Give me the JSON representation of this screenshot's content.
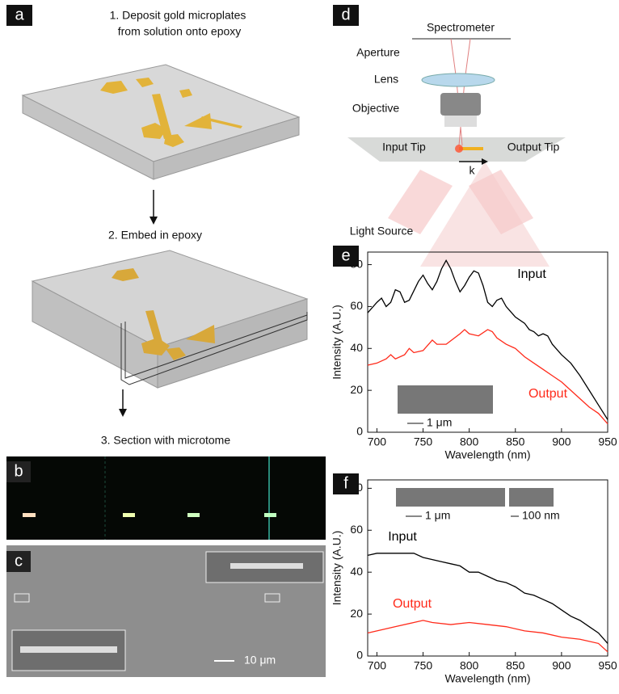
{
  "panels": {
    "a": {
      "label": "a",
      "step1": "1. Deposit gold microplates",
      "step1b": "from solution onto epoxy",
      "step2": "2. Embed in epoxy",
      "step3": "3. Section with microtome"
    },
    "b": {
      "label": "b"
    },
    "c": {
      "label": "c",
      "scale_bar": "10 μm"
    },
    "d": {
      "label": "d",
      "spectrometer": "Spectrometer",
      "aperture": "Aperture",
      "lens": "Lens",
      "objective": "Objective",
      "input_tip": "Input Tip",
      "output_tip": "Output Tip",
      "k": "k",
      "light_source": "Light Source"
    }
  },
  "chart_data": [
    {
      "type": "line",
      "panel_label": "e",
      "xlabel": "Wavelength (nm)",
      "ylabel": "Intensity (A.U.)",
      "inset_scale": "1 μm",
      "xlim": [
        690,
        950
      ],
      "ylim": [
        0,
        86
      ],
      "xticks": [
        700,
        750,
        800,
        850,
        900,
        950
      ],
      "yticks": [
        0,
        20,
        40,
        60,
        80
      ],
      "series": [
        {
          "name": "Input",
          "color": "#000000",
          "x": [
            690,
            700,
            705,
            710,
            715,
            720,
            725,
            730,
            735,
            745,
            750,
            755,
            760,
            765,
            770,
            775,
            780,
            785,
            790,
            795,
            800,
            805,
            810,
            815,
            820,
            825,
            830,
            835,
            840,
            850,
            860,
            865,
            870,
            875,
            880,
            885,
            890,
            900,
            910,
            920,
            930,
            940,
            950
          ],
          "values": [
            57,
            62,
            64,
            60,
            62,
            68,
            67,
            62,
            63,
            72,
            75,
            71,
            68,
            72,
            78,
            82,
            78,
            72,
            67,
            70,
            74,
            77,
            76,
            70,
            62,
            60,
            63,
            64,
            60,
            55,
            52,
            49,
            48,
            46,
            47,
            46,
            42,
            37,
            33,
            27,
            20,
            13,
            6
          ]
        },
        {
          "name": "Output",
          "color": "#ff2a1a",
          "x": [
            690,
            700,
            710,
            715,
            720,
            730,
            735,
            740,
            750,
            760,
            765,
            775,
            790,
            795,
            800,
            810,
            820,
            825,
            830,
            840,
            850,
            860,
            870,
            880,
            890,
            900,
            910,
            920,
            930,
            940,
            950
          ],
          "values": [
            32,
            33,
            35,
            37,
            35,
            37,
            40,
            38,
            39,
            44,
            42,
            42,
            47,
            49,
            47,
            46,
            49,
            48,
            45,
            42,
            40,
            36,
            33,
            30,
            27,
            24,
            20,
            16,
            12,
            9,
            4
          ]
        }
      ]
    },
    {
      "type": "line",
      "panel_label": "f",
      "xlabel": "Wavelength (nm)",
      "ylabel": "Intensity (A.U.)",
      "inset_scale": "1 μm",
      "inset_scale2": "100 nm",
      "xlim": [
        690,
        950
      ],
      "ylim": [
        0,
        84
      ],
      "xticks": [
        700,
        750,
        800,
        850,
        900,
        950
      ],
      "yticks": [
        0,
        20,
        40,
        60,
        80
      ],
      "series": [
        {
          "name": "Input",
          "color": "#000000",
          "x": [
            690,
            700,
            720,
            740,
            750,
            760,
            770,
            780,
            790,
            800,
            810,
            820,
            830,
            840,
            850,
            860,
            870,
            880,
            890,
            900,
            910,
            920,
            930,
            940,
            950
          ],
          "values": [
            48,
            49,
            49,
            49,
            47,
            46,
            45,
            44,
            43,
            40,
            40,
            38,
            36,
            35,
            33,
            30,
            29,
            27,
            25,
            22,
            19,
            17,
            14,
            11,
            6
          ]
        },
        {
          "name": "Output",
          "color": "#ff2a1a",
          "x": [
            690,
            700,
            720,
            740,
            750,
            760,
            780,
            800,
            820,
            840,
            860,
            880,
            900,
            920,
            940,
            950
          ],
          "values": [
            11,
            12,
            14,
            16,
            17,
            16,
            15,
            16,
            15,
            14,
            12,
            11,
            9,
            8,
            6,
            2
          ]
        }
      ]
    }
  ]
}
